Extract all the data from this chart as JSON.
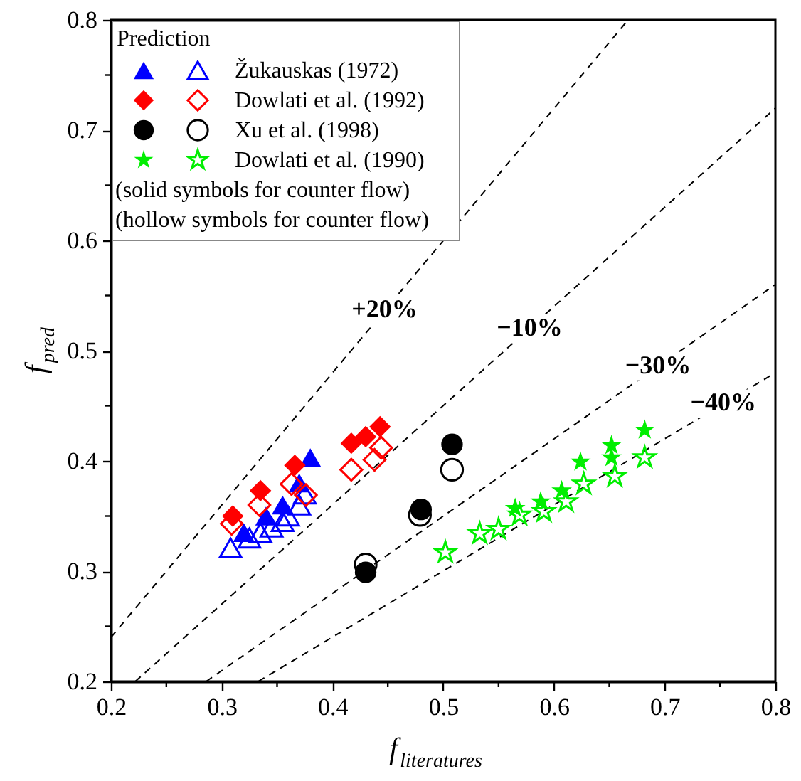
{
  "chart_data": {
    "type": "scatter",
    "xlabel": "f$_{literatures}$",
    "ylabel": "f$_{pred}$",
    "legend_title": "Prediction",
    "legend": "top left",
    "xlim": [
      0.2,
      0.8
    ],
    "ylim": [
      0.2,
      0.8
    ],
    "xticks": [
      0.2,
      {
        "value": 0.25,
        "label": null
      },
      0.3,
      {
        "value": 0.35,
        "label": null
      },
      0.4,
      {
        "value": 0.45,
        "label": null
      },
      0.5,
      {
        "value": 0.55,
        "label": null
      },
      0.6,
      {
        "value": 0.65,
        "label": null
      },
      0.7,
      {
        "value": 0.75,
        "label": null
      },
      0.8
    ],
    "yticks": [
      0.2,
      {
        "value": 0.25,
        "label": null
      },
      0.3,
      {
        "value": 0.35,
        "label": null
      },
      0.4,
      {
        "value": 0.45,
        "label": null
      },
      0.5,
      {
        "value": 0.55,
        "label": null
      },
      0.6,
      {
        "value": 0.65,
        "label": null
      },
      0.7,
      {
        "value": 0.75,
        "label": null
      },
      0.8
    ],
    "series": [
      {
        "type": "line",
        "color": "#000000",
        "line_style": "dashed",
        "marker": "none",
        "x": [
          0.2,
          0.667
        ],
        "values": [
          0.24,
          0.8
        ]
      },
      {
        "type": "line",
        "color": "#000000",
        "line_style": "dashed",
        "marker": "none",
        "x": [
          0.222,
          0.8
        ],
        "values": [
          0.2,
          0.72
        ]
      },
      {
        "type": "line",
        "color": "#000000",
        "line_style": "dashed",
        "marker": "none",
        "x": [
          0.286,
          0.8
        ],
        "values": [
          0.2,
          0.56
        ]
      },
      {
        "type": "line",
        "color": "#000000",
        "line_style": "dashed",
        "marker": "none",
        "x": [
          0.333,
          0.8
        ],
        "values": [
          0.2,
          0.48
        ]
      },
      {
        "color": "#0000ff",
        "marker": "triangle",
        "x": [
          0.32,
          0.34,
          0.355,
          0.37,
          0.38
        ],
        "values": [
          0.335,
          0.35,
          0.36,
          0.38,
          0.403
        ]
      },
      {
        "name": "Žukauskas (1972)",
        "color": "#0000ff",
        "marker": "triangle",
        "x": [
          0.308,
          0.325,
          0.335,
          0.345,
          0.355,
          0.36,
          0.37,
          0.375
        ],
        "values": [
          0.321,
          0.33,
          0.335,
          0.34,
          0.345,
          0.35,
          0.36,
          0.37
        ]
      },
      {
        "color": "#ff0000",
        "marker": "diamond",
        "x": [
          0.31,
          0.335,
          0.366,
          0.417,
          0.43,
          0.443
        ],
        "values": [
          0.35,
          0.373,
          0.396,
          0.416,
          0.422,
          0.431
        ]
      },
      {
        "name": "Dowlati et al. (1992)",
        "color": "#ff0000",
        "marker": "diamond",
        "x": [
          0.309,
          0.334,
          0.363,
          0.376,
          0.417,
          0.438,
          0.444
        ],
        "values": [
          0.343,
          0.36,
          0.379,
          0.369,
          0.392,
          0.401,
          0.412
        ]
      },
      {
        "color": "#000000",
        "marker": "circle",
        "x": [
          0.508,
          0.48,
          0.43
        ],
        "values": [
          0.415,
          0.356,
          0.299
        ]
      },
      {
        "name": "Xu et al. (1998)",
        "color": "#000000",
        "marker": "circle",
        "x": [
          0.508,
          0.479,
          0.43
        ],
        "values": [
          0.392,
          0.351,
          0.306
        ]
      },
      {
        "color": "#00ee00",
        "marker": "star",
        "x": [
          0.565,
          0.588,
          0.607,
          0.624,
          0.652,
          0.652,
          0.682
        ],
        "values": [
          0.357,
          0.363,
          0.373,
          0.399,
          0.414,
          0.403,
          0.428
        ]
      },
      {
        "name": "Dowlati et al. (1990)",
        "color": "#00ee00",
        "marker": "star",
        "x": [
          0.502,
          0.533,
          0.55,
          0.569,
          0.591,
          0.611,
          0.627,
          0.655,
          0.682
        ],
        "values": [
          0.317,
          0.334,
          0.338,
          0.351,
          0.354,
          0.363,
          0.379,
          0.386,
          0.403
        ]
      }
    ],
    "annotations": [
      {
        "text": "+20%",
        "x": 0.447,
        "y": 0.537
      },
      {
        "text": "−10%",
        "x": 0.578,
        "y": 0.52
      },
      {
        "text": "−30%",
        "x": 0.694,
        "y": 0.486
      },
      {
        "text": "−40%",
        "x": 0.753,
        "y": 0.452
      },
      "(solid symbols for counter flow)",
      "(hollow symbols for counter flow)"
    ]
  }
}
